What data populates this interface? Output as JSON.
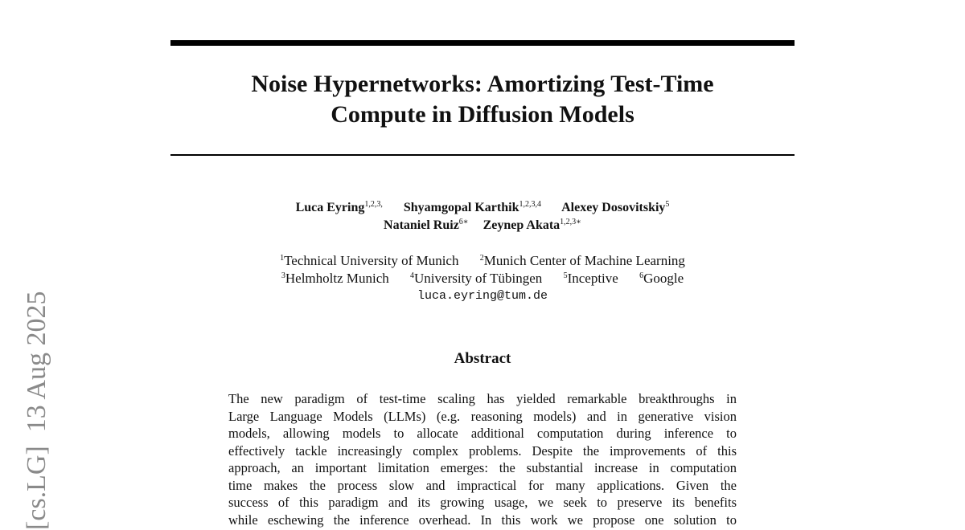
{
  "paper": {
    "title_lines": [
      "Noise Hypernetworks: Amortizing Test-Time",
      "Compute in Diffusion Models"
    ],
    "authors": [
      {
        "name": "Luca Eyring",
        "sup": "1,2,3,"
      },
      {
        "name": "Shyamgopal Karthik",
        "sup": "1,2,3,4"
      },
      {
        "name": "Alexey Dosovitskiy",
        "sup": "5"
      },
      {
        "name": "Nataniel Ruiz",
        "sup": "6∗"
      },
      {
        "name": "Zeynep Akata",
        "sup": "1,2,3∗"
      }
    ],
    "affiliations": [
      {
        "sup": "1",
        "name": "Technical University of Munich"
      },
      {
        "sup": "2",
        "name": "Munich Center of Machine Learning"
      },
      {
        "sup": "3",
        "name": "Helmholtz Munich"
      },
      {
        "sup": "4",
        "name": "University of Tübingen"
      },
      {
        "sup": "5",
        "name": "Inceptive"
      },
      {
        "sup": "6",
        "name": "Google"
      }
    ],
    "email": "luca.eyring@tum.de",
    "abstract_heading": "Abstract",
    "abstract_lines": [
      "The new paradigm of test-time scaling has yielded remarkable breakthroughs in",
      "Large Language Models (LLMs) (e.g. reasoning models) and in generative vision",
      "models, allowing models to allocate additional computation during inference to",
      "effectively tackle increasingly complex problems. Despite the improvements of this",
      "approach, an important limitation emerges: the substantial increase in computation",
      "time makes the process slow and impractical for many applications.  Given the",
      "success of this paradigm and its growing usage, we seek to preserve its benefits",
      "while eschewing the inference overhead. In this work we propose one solution to"
    ],
    "side_stamp": "[cs.LG]  13 Aug 2025"
  }
}
